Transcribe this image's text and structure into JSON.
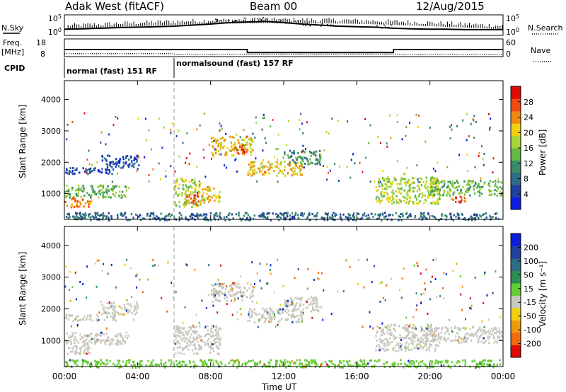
{
  "header": {
    "station": "Adak West (fitACF)",
    "beam": "Beam 00",
    "date": "12/Aug/2015"
  },
  "side_labels": {
    "nsky": "N.Sky",
    "nsearch": "N.Search",
    "freq_line1": "Freq.",
    "freq_line2": "[MHz]",
    "nave": "Nave",
    "cpid": "CPID"
  },
  "cpid_segments": [
    {
      "label": "normal (fast) 151 RF",
      "start_hour": 0
    },
    {
      "label": "normalsound (fast) 157 RF",
      "start_hour": 6
    }
  ],
  "colors": {
    "power_scale": [
      "#0a1fe0",
      "#21409d",
      "#2e6b85",
      "#3a8a6a",
      "#66b847",
      "#a6d63a",
      "#f0d010",
      "#f08a10",
      "#f04a10",
      "#e00a0a"
    ],
    "velocity_scale": [
      "#0a1fe0",
      "#21409d",
      "#2e6b85",
      "#2c8c52",
      "#66cc33",
      "#c8c8c0",
      "#f0d010",
      "#f09a10",
      "#f06a10",
      "#e00a0a"
    ],
    "ground_scatter": "#c8c8c0"
  },
  "chart_data": [
    {
      "type": "line",
      "title": "N.Sky / N.Search",
      "x_range_hours": [
        0,
        24
      ],
      "y_left_ticks": [
        "10^5",
        "10^0"
      ],
      "y_right_ticks": [
        "10^5",
        "10^0"
      ],
      "series": [
        {
          "name": "N.Sky",
          "x": [
            0,
            1,
            2,
            3,
            4,
            5,
            6,
            7,
            8,
            9,
            10,
            11,
            12,
            13,
            14,
            15,
            16,
            17,
            18,
            19,
            20,
            21,
            22,
            23,
            24
          ],
          "values": [
            0.3,
            0.32,
            0.35,
            0.38,
            0.4,
            0.42,
            0.45,
            0.5,
            0.55,
            0.62,
            0.65,
            0.68,
            0.62,
            0.55,
            0.5,
            0.45,
            0.42,
            0.4,
            0.35,
            0.32,
            0.3,
            0.3,
            0.28,
            0.28,
            0.28
          ]
        },
        {
          "name": "N.Search",
          "x": [
            8,
            9,
            10,
            11,
            12,
            13,
            14,
            17
          ],
          "values": [
            0.7,
            0.75,
            0.8,
            0.72,
            0.65,
            0.55,
            0.5,
            0.45
          ]
        }
      ]
    },
    {
      "type": "line",
      "title": "Freq / Nave",
      "x_range_hours": [
        0,
        24
      ],
      "y_left_ticks": [
        "18",
        "8"
      ],
      "y_right_ticks": [
        "60",
        "0"
      ],
      "series": [
        {
          "name": "Freq",
          "x": [
            0,
            6,
            6.01,
            10,
            10.01,
            18,
            18.01,
            24
          ],
          "values": [
            12,
            12,
            12,
            12,
            10.3,
            10.3,
            12,
            12
          ]
        },
        {
          "name": "Nave",
          "x": [
            0,
            6,
            6.01,
            24
          ],
          "values": [
            10,
            10,
            8,
            8
          ]
        }
      ]
    },
    {
      "type": "heatmap",
      "title": "Power",
      "xlabel": "Time UT",
      "ylabel": "Slant Range [km]",
      "x_ticks": [
        "00:00",
        "04:00",
        "08:00",
        "12:00",
        "16:00",
        "20:00",
        "00:00"
      ],
      "y_ticks": [
        "1000",
        "2000",
        "3000",
        "4000"
      ],
      "ylim": [
        180,
        4600
      ],
      "colorbar_label": "Power [dB]",
      "colorbar_ticks": [
        "4",
        "8",
        "12",
        "16",
        "20",
        "24",
        "28"
      ],
      "regions": [
        {
          "t0": 0.0,
          "t1": 2.8,
          "r0": 1650,
          "r1": 1850,
          "level": 1
        },
        {
          "t0": 2.0,
          "t1": 4.0,
          "r0": 1850,
          "r1": 2250,
          "level": 1
        },
        {
          "t0": 0.0,
          "t1": 3.5,
          "r0": 900,
          "r1": 1300,
          "level": 4
        },
        {
          "t0": 0.0,
          "t1": 1.5,
          "r0": 600,
          "r1": 900,
          "level": 7
        },
        {
          "t0": 6.0,
          "t1": 7.5,
          "r0": 600,
          "r1": 1500,
          "level": 5
        },
        {
          "t0": 6.6,
          "t1": 7.3,
          "r0": 650,
          "r1": 1050,
          "level": 8
        },
        {
          "t0": 7.5,
          "t1": 8.5,
          "r0": 750,
          "r1": 1250,
          "level": 6
        },
        {
          "t0": 8.0,
          "t1": 10.3,
          "r0": 2250,
          "r1": 2850,
          "level": 6
        },
        {
          "t0": 9.3,
          "t1": 10.0,
          "r0": 2300,
          "r1": 2600,
          "level": 8
        },
        {
          "t0": 10.0,
          "t1": 13.0,
          "r0": 1600,
          "r1": 2050,
          "level": 6
        },
        {
          "t0": 12.0,
          "t1": 14.0,
          "r0": 1950,
          "r1": 2400,
          "level": 3
        },
        {
          "t0": 17.0,
          "t1": 20.5,
          "r0": 700,
          "r1": 1550,
          "level": 5
        },
        {
          "t0": 20.0,
          "t1": 23.9,
          "r0": 950,
          "r1": 1450,
          "level": 4
        },
        {
          "t0": 21.0,
          "t1": 22.0,
          "r0": 750,
          "r1": 950,
          "level": 8
        },
        {
          "t0": 0.0,
          "t1": 23.9,
          "r0": 180,
          "r1": 420,
          "level": 2
        }
      ]
    },
    {
      "type": "heatmap",
      "title": "Velocity",
      "xlabel": "Time UT",
      "ylabel": "Slant Range [km]",
      "x_ticks": [
        "00:00",
        "04:00",
        "08:00",
        "12:00",
        "16:00",
        "20:00",
        "00:00"
      ],
      "y_ticks": [
        "1000",
        "2000",
        "3000",
        "4000"
      ],
      "ylim": [
        180,
        4600
      ],
      "colorbar_label": "Velocity [m s⁻¹]",
      "colorbar_ticks": [
        "200",
        "100",
        "50",
        "15",
        "-15",
        "-50",
        "-100",
        "-200"
      ],
      "regions": [
        {
          "t0": 0.0,
          "t1": 2.8,
          "r0": 1650,
          "r1": 1850,
          "level": 5
        },
        {
          "t0": 2.0,
          "t1": 4.0,
          "r0": 1850,
          "r1": 2250,
          "level": 5
        },
        {
          "t0": 0.0,
          "t1": 3.5,
          "r0": 900,
          "r1": 1300,
          "level": 5
        },
        {
          "t0": 0.0,
          "t1": 1.5,
          "r0": 600,
          "r1": 900,
          "level": 5
        },
        {
          "t0": 6.0,
          "t1": 8.5,
          "r0": 600,
          "r1": 1500,
          "level": 5
        },
        {
          "t0": 8.0,
          "t1": 10.3,
          "r0": 2250,
          "r1": 2850,
          "level": 5
        },
        {
          "t0": 10.0,
          "t1": 13.0,
          "r0": 1600,
          "r1": 2050,
          "level": 5
        },
        {
          "t0": 12.0,
          "t1": 14.0,
          "r0": 1950,
          "r1": 2400,
          "level": 5
        },
        {
          "t0": 17.0,
          "t1": 20.5,
          "r0": 700,
          "r1": 1550,
          "level": 5
        },
        {
          "t0": 20.0,
          "t1": 23.9,
          "r0": 950,
          "r1": 1450,
          "level": 5
        },
        {
          "t0": 0.0,
          "t1": 23.9,
          "r0": 180,
          "r1": 420,
          "level": 4
        }
      ]
    }
  ]
}
